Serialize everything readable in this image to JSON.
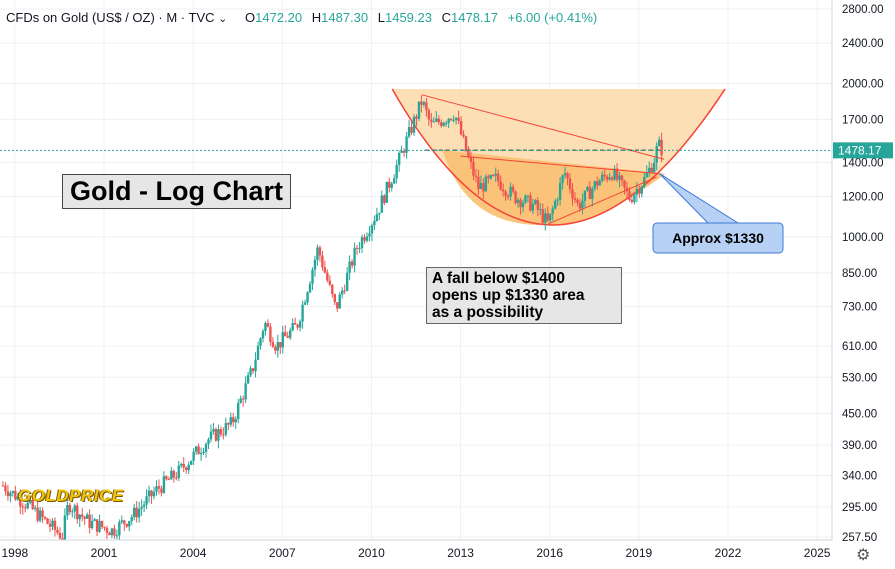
{
  "header": {
    "symbol": "CFDs on Gold (US$ / OZ) · M · TVC",
    "chevron_icon": "chevron-down-icon",
    "open_label": "O",
    "open": "1472.20",
    "high_label": "H",
    "high": "1487.30",
    "low_label": "L",
    "low": "1459.23",
    "close_label": "C",
    "close": "1478.17",
    "change": "+6.00 (+0.41%)"
  },
  "annotations": {
    "title": "Gold - Log Chart",
    "note": [
      "A fall below $1400",
      "opens up $1330 area",
      "as a possibility"
    ],
    "callout": "Approx $1330",
    "logo": "GOLDPRICE"
  },
  "price_tag": "1478.17",
  "settings_icon": "gear-icon",
  "colors": {
    "up": "#26a69a",
    "down": "#ef5350",
    "cup_fill": "#fdd9a8",
    "bowl_fill": "#fbbf72",
    "curve": "#f44336",
    "callout_fill": "#b7d1f5",
    "callout_border": "#3d79d8"
  },
  "chart_data": {
    "type": "candlestick",
    "scale": "log",
    "interval": "Monthly",
    "ylim": [
      257.5,
      2800
    ],
    "y_ticks": [
      "257.50",
      "295.00",
      "340.00",
      "390.00",
      "450.00",
      "530.00",
      "610.00",
      "730.00",
      "850.00",
      "1000.00",
      "1200.00",
      "1400.00",
      "1700.00",
      "2000.00",
      "2400.00",
      "2800.00"
    ],
    "x_ticks": [
      "1998",
      "2001",
      "2004",
      "2007",
      "2010",
      "2013",
      "2016",
      "2019",
      "2022",
      "2025"
    ],
    "xlim": [
      1997.5,
      2025.5
    ],
    "last_price": 1478.17,
    "price_path": [
      [
        1997.6,
        325
      ],
      [
        1998.5,
        295
      ],
      [
        1999.6,
        258
      ],
      [
        1999.8,
        300
      ],
      [
        2000.5,
        275
      ],
      [
        2001.3,
        265
      ],
      [
        2002.0,
        285
      ],
      [
        2002.8,
        320
      ],
      [
        2003.5,
        345
      ],
      [
        2004.5,
        400
      ],
      [
        2005.3,
        430
      ],
      [
        2006.0,
        550
      ],
      [
        2006.4,
        680
      ],
      [
        2006.8,
        610
      ],
      [
        2007.5,
        670
      ],
      [
        2008.2,
        950
      ],
      [
        2008.8,
        720
      ],
      [
        2009.5,
        950
      ],
      [
        2010.2,
        1120
      ],
      [
        2010.9,
        1400
      ],
      [
        2011.7,
        1850
      ],
      [
        2012.0,
        1650
      ],
      [
        2012.8,
        1750
      ],
      [
        2013.3,
        1400
      ],
      [
        2013.6,
        1250
      ],
      [
        2014.2,
        1300
      ],
      [
        2014.8,
        1200
      ],
      [
        2015.5,
        1150
      ],
      [
        2015.95,
        1060
      ],
      [
        2016.5,
        1340
      ],
      [
        2016.95,
        1150
      ],
      [
        2017.6,
        1280
      ],
      [
        2018.1,
        1340
      ],
      [
        2018.7,
        1190
      ],
      [
        2019.2,
        1300
      ],
      [
        2019.5,
        1410
      ],
      [
        2019.65,
        1520
      ],
      [
        2019.8,
        1478
      ]
    ],
    "price_line": 1478.17,
    "channel_top": [
      [
        2011.7,
        1900
      ],
      [
        2019.85,
        1420
      ]
    ],
    "channel_resist": [
      [
        2013.0,
        1440
      ],
      [
        2019.7,
        1330
      ]
    ],
    "channel_support": [
      [
        2015.95,
        1060
      ],
      [
        2019.6,
        1310
      ]
    ],
    "dashed_top": [
      [
        2011.8,
        1480
      ],
      [
        2019.8,
        1480
      ]
    ],
    "cup_curve": {
      "left": [
        2010.7,
        1950
      ],
      "bottom": [
        2015.9,
        1055
      ],
      "right": [
        2021.9,
        1950
      ]
    },
    "callout_target": [
      2019.7,
      1330
    ]
  }
}
